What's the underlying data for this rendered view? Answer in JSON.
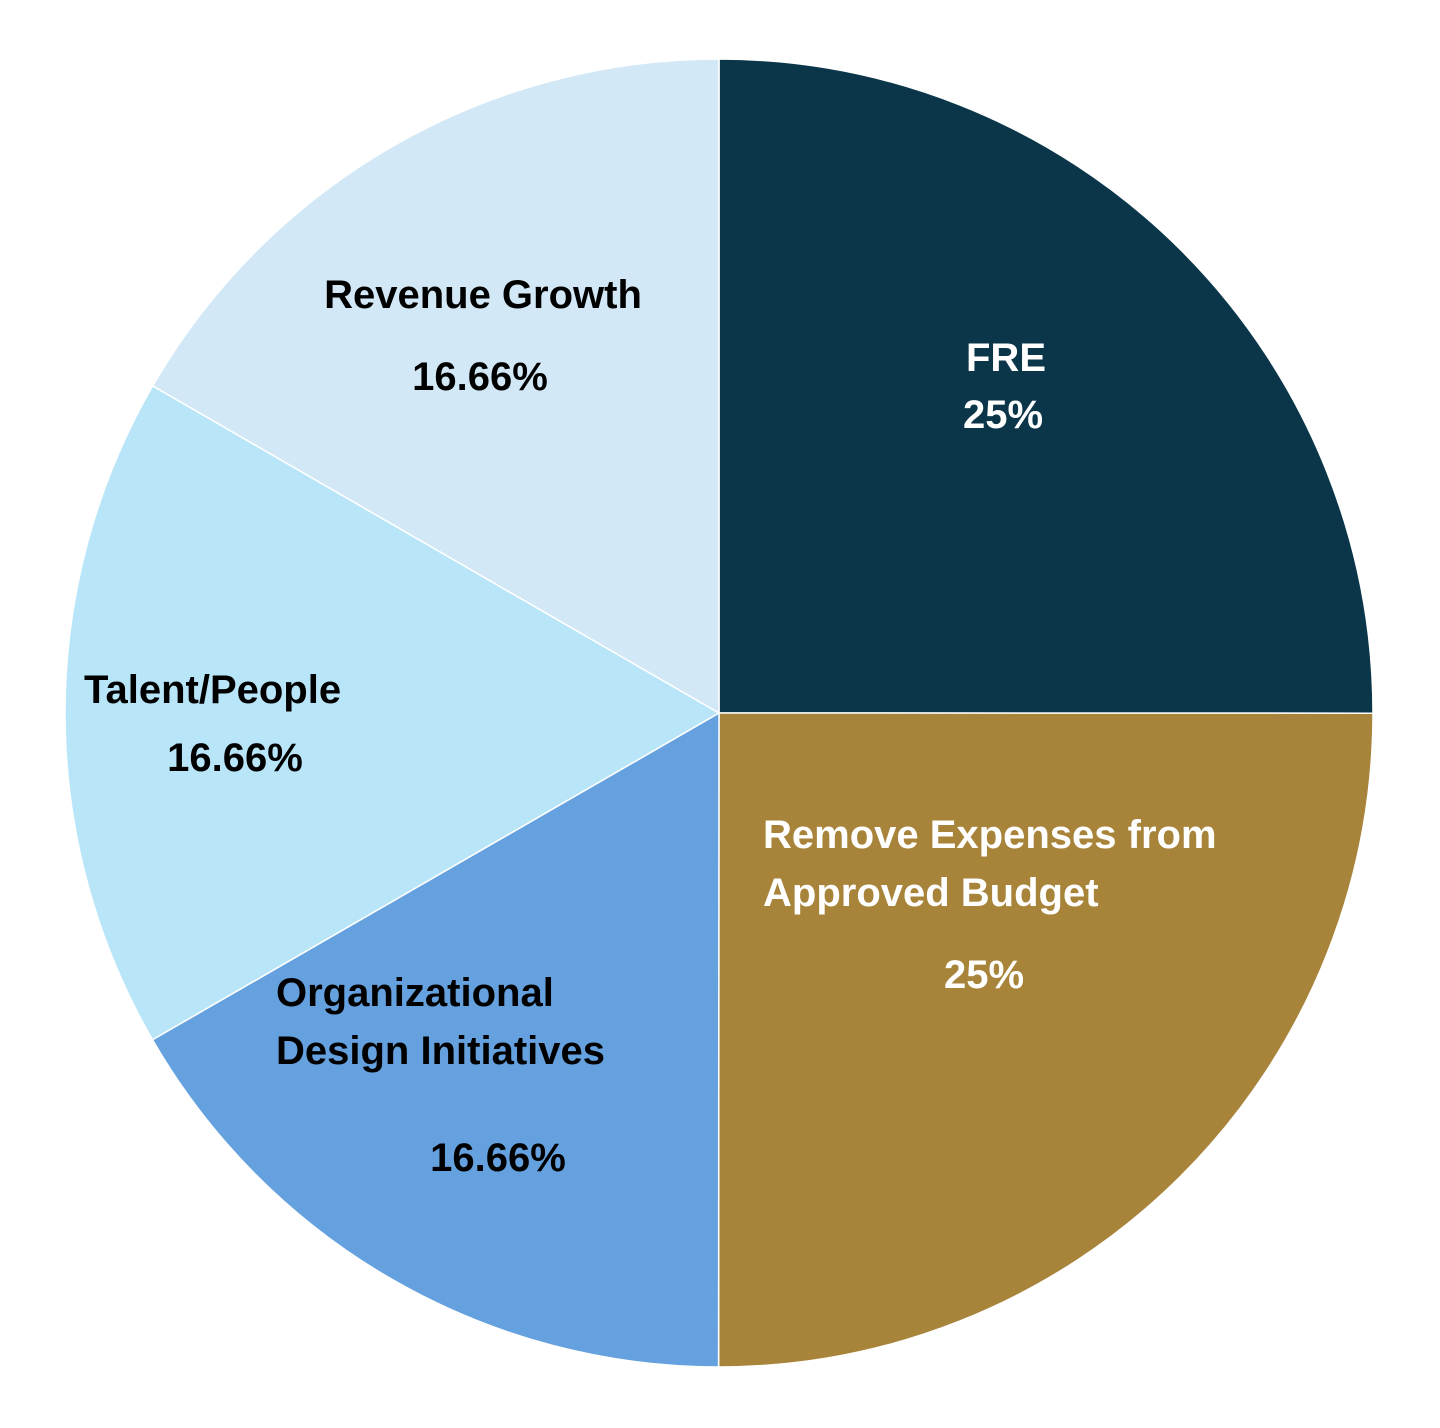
{
  "chart_data": {
    "type": "pie",
    "categories": [
      "FRE",
      "Remove Expenses from Approved Budget",
      "Organizational Design Initiatives",
      "Talent/People",
      "Revenue Growth"
    ],
    "values": [
      25,
      25,
      16.66,
      16.66,
      16.66
    ],
    "value_labels": [
      "25%",
      "25%",
      "16.66%",
      "16.66%",
      "16.66%"
    ],
    "colors": [
      "#0b3649",
      "#a8843a",
      "#64a1de",
      "#b8e5f8",
      "#d2e8f6"
    ],
    "label_colors": [
      "#ffffff",
      "#ffffff",
      "#000000",
      "#000000",
      "#000000"
    ]
  }
}
